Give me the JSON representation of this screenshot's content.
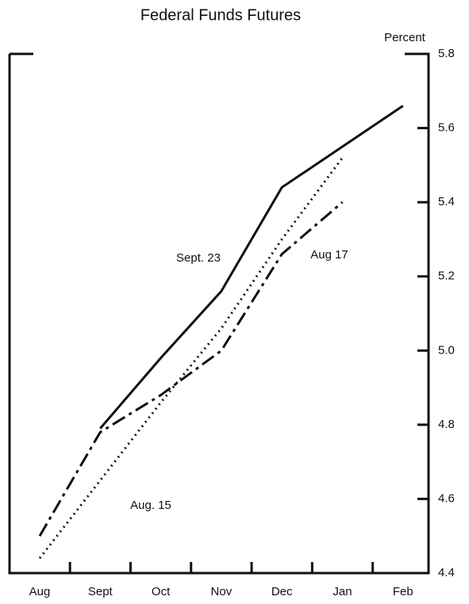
{
  "chart_data": {
    "type": "line",
    "title": "Federal Funds Futures",
    "y_axis_label": "Percent",
    "categories": [
      "Aug",
      "Sept",
      "Oct",
      "Nov",
      "Dec",
      "Jan",
      "Feb"
    ],
    "series": [
      {
        "name": "Sept. 23",
        "color": "#111111",
        "style": "solid",
        "values": [
          null,
          4.79,
          4.98,
          5.16,
          5.44,
          5.55,
          5.66
        ]
      },
      {
        "name": "Aug 17",
        "color": "#111111",
        "style": "dashdot",
        "values": [
          4.5,
          4.78,
          4.88,
          5.0,
          5.26,
          5.4,
          null
        ]
      },
      {
        "name": "Aug. 15",
        "color": "#111111",
        "style": "dotted",
        "values": [
          4.44,
          4.65,
          4.86,
          5.06,
          5.3,
          5.52,
          null
        ]
      }
    ],
    "ylim": [
      4.4,
      5.8
    ],
    "yticks": [
      4.4,
      4.6,
      4.8,
      {
        "value": 5,
        "label": "5.0"
      },
      5.2,
      5.4,
      5.6,
      5.8
    ],
    "y_axis_side": "right",
    "grid": false
  }
}
